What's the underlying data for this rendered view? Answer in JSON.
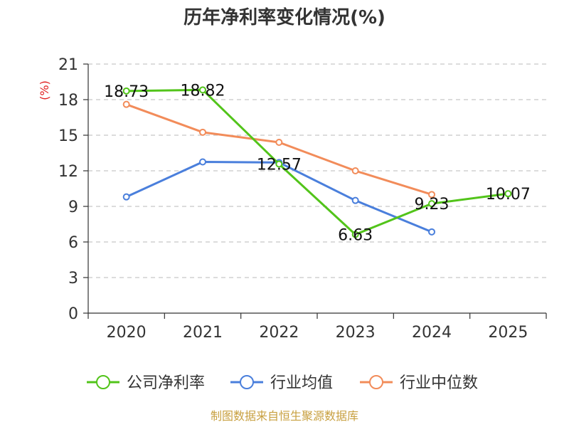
{
  "chart_data": {
    "type": "line",
    "title": "历年净利率变化情况(%)",
    "ylabel": "(%)",
    "xlabel": "",
    "categories": [
      "2020",
      "2021",
      "2022",
      "2023",
      "2024",
      "2025"
    ],
    "ylim": [
      0,
      21
    ],
    "yticks": [
      0,
      3,
      6,
      9,
      12,
      15,
      18,
      21
    ],
    "grid": true,
    "legend_position": "bottom",
    "series": [
      {
        "name": "公司净利率",
        "color": "#52c41a",
        "values": [
          18.73,
          18.82,
          12.57,
          6.63,
          9.23,
          10.07
        ],
        "labels": [
          "18.73",
          "18.82",
          "12.57",
          "6.63",
          "9.23",
          "10.07"
        ]
      },
      {
        "name": "行业均值",
        "color": "#4a7fdc",
        "values": [
          9.8,
          12.75,
          12.7,
          9.5,
          6.85,
          null
        ]
      },
      {
        "name": "行业中位数",
        "color": "#f28c5a",
        "values": [
          17.6,
          15.25,
          14.4,
          12.0,
          10.0,
          null
        ]
      }
    ]
  },
  "footer": {
    "source": "制图数据来自恒生聚源数据库"
  }
}
